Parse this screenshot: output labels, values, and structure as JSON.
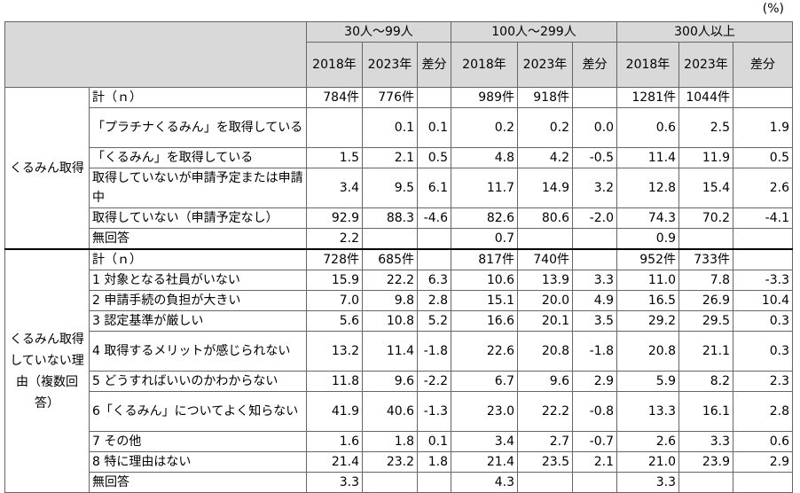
{
  "unit": "(%)",
  "header": {
    "groups": [
      "30人～99人",
      "100人～299人",
      "300人以上"
    ],
    "columns": [
      "2018年",
      "2023年",
      "差分"
    ]
  },
  "sections": [
    {
      "label": "くるみん取得",
      "rows": [
        {
          "label": "計（ｎ）",
          "cells": [
            "784件",
            "776件",
            null,
            "989件",
            "918件",
            null,
            "1281件",
            "1044件",
            null
          ]
        },
        {
          "label": "「プラチナくるみん」を取得している",
          "cells": [
            null,
            "0.1",
            "0.1",
            "0.2",
            "0.2",
            "0.0",
            "0.6",
            "2.5",
            "1.9"
          ]
        },
        {
          "label": "「くるみん」を取得している",
          "cells": [
            "1.5",
            "2.1",
            "0.5",
            "4.8",
            "4.2",
            "-0.5",
            "11.4",
            "11.9",
            "0.5"
          ]
        },
        {
          "label": "取得していないが申請予定または申請中",
          "cells": [
            "3.4",
            "9.5",
            "6.1",
            "11.7",
            "14.9",
            "3.2",
            "12.8",
            "15.4",
            "2.6"
          ]
        },
        {
          "label": "取得していない（申請予定なし）",
          "cells": [
            "92.9",
            "88.3",
            "-4.6",
            "82.6",
            "80.6",
            "-2.0",
            "74.3",
            "70.2",
            "-4.1"
          ]
        },
        {
          "label": "無回答",
          "cells": [
            "2.2",
            null,
            null,
            "0.7",
            null,
            null,
            "0.9",
            null,
            null
          ]
        }
      ]
    },
    {
      "label": "くるみん取得していない理由（複数回答）",
      "rows": [
        {
          "label": "計（ｎ）",
          "cells": [
            "728件",
            "685件",
            null,
            "817件",
            "740件",
            null,
            "952件",
            "733件",
            null
          ]
        },
        {
          "label": "1 対象となる社員がいない",
          "cells": [
            "15.9",
            "22.2",
            "6.3",
            "10.6",
            "13.9",
            "3.3",
            "11.0",
            "7.8",
            "-3.3"
          ]
        },
        {
          "label": "2 申請手続の負担が大きい",
          "cells": [
            "7.0",
            "9.8",
            "2.8",
            "15.1",
            "20.0",
            "4.9",
            "16.5",
            "26.9",
            "10.4"
          ]
        },
        {
          "label": "3 認定基準が厳しい",
          "cells": [
            "5.6",
            "10.8",
            "5.2",
            "16.6",
            "20.1",
            "3.5",
            "29.2",
            "29.5",
            "0.3"
          ]
        },
        {
          "label": "4 取得するメリットが感じられない",
          "cells": [
            "13.2",
            "11.4",
            "-1.8",
            "22.6",
            "20.8",
            "-1.8",
            "20.8",
            "21.1",
            "0.3"
          ]
        },
        {
          "label": "5 どうすればいいのかわからない",
          "cells": [
            "11.8",
            "9.6",
            "-2.2",
            "6.7",
            "9.6",
            "2.9",
            "5.9",
            "8.2",
            "2.3"
          ]
        },
        {
          "label": "6「くるみん」についてよく知らない",
          "cells": [
            "41.9",
            "40.6",
            "-1.3",
            "23.0",
            "22.2",
            "-0.8",
            "13.3",
            "16.1",
            "2.8"
          ]
        },
        {
          "label": "7 その他",
          "cells": [
            "1.6",
            "1.8",
            "0.1",
            "3.4",
            "2.7",
            "-0.7",
            "2.6",
            "3.3",
            "0.6"
          ]
        },
        {
          "label": "8 特に理由はない",
          "cells": [
            "21.4",
            "23.2",
            "1.8",
            "21.4",
            "23.5",
            "2.1",
            "21.0",
            "23.9",
            "2.9"
          ]
        },
        {
          "label": "無回答",
          "cells": [
            "3.3",
            null,
            null,
            "4.3",
            null,
            null,
            "3.3",
            null,
            null
          ]
        }
      ]
    }
  ]
}
